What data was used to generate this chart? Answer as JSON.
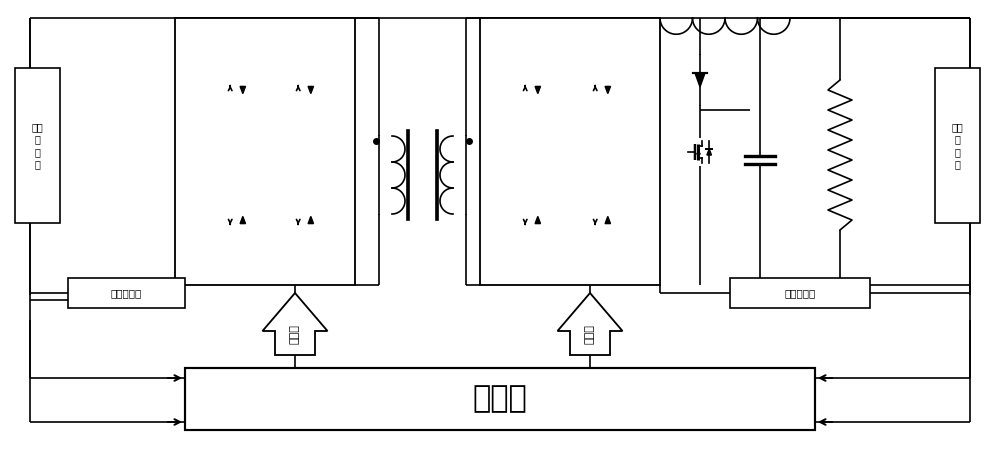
{
  "bg_color": "#ffffff",
  "line_color": "#000000",
  "lw": 1.2,
  "fig_width": 10.0,
  "fig_height": 4.7,
  "dpi": 100,
  "labels": {
    "vs_left": "电压\n传\n感\n器",
    "vs_right": "电压\n传\n感\n器",
    "cs_left": "电流传感器",
    "cs_right": "电流传感器",
    "controller": "控制器",
    "drive_left": "驱动信",
    "drive_right": "驱动信"
  }
}
